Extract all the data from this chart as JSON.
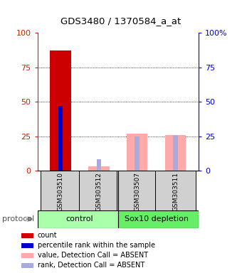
{
  "title": "GDS3480 / 1370584_a_at",
  "samples": [
    "GSM303510",
    "GSM303512",
    "GSM303507",
    "GSM303511"
  ],
  "bars": [
    {
      "sample": "GSM303510",
      "count": 87,
      "percentile": 47,
      "absent_value": null,
      "absent_rank": null
    },
    {
      "sample": "GSM303512",
      "count": null,
      "percentile": null,
      "absent_value": 3,
      "absent_rank": 8
    },
    {
      "sample": "GSM303507",
      "count": null,
      "percentile": null,
      "absent_value": 27,
      "absent_rank": 25
    },
    {
      "sample": "GSM303511",
      "count": null,
      "percentile": null,
      "absent_value": 26,
      "absent_rank": 26
    }
  ],
  "ylim": [
    0,
    100
  ],
  "yticks": [
    0,
    25,
    50,
    75,
    100
  ],
  "legend_items": [
    {
      "color": "#cc0000",
      "label": "count"
    },
    {
      "color": "#0000cc",
      "label": "percentile rank within the sample"
    },
    {
      "color": "#ffaaaa",
      "label": "value, Detection Call = ABSENT"
    },
    {
      "color": "#aaaadd",
      "label": "rank, Detection Call = ABSENT"
    }
  ],
  "left_tick_color": "#cc2200",
  "right_tick_color": "#0000cc",
  "absent_value_color": "#ffaaaa",
  "absent_rank_color": "#aaaadd",
  "count_color": "#cc0000",
  "percentile_color": "#0000cc",
  "control_color": "#aaffaa",
  "sox10_color": "#66ee66",
  "sample_box_color": "#d0d0d0",
  "grid_color": "#000000",
  "wide_bar_width": 0.55,
  "narrow_bar_width": 0.12
}
